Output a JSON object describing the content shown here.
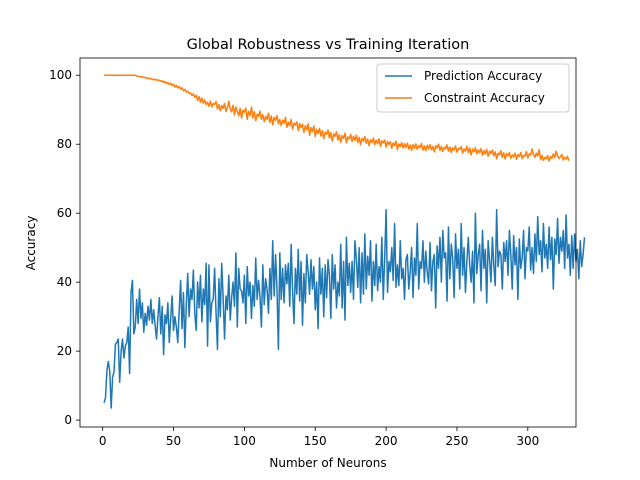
{
  "chart_data": {
    "type": "line",
    "title": "Global Robustness vs Training Iteration",
    "xlabel": "Number of Neurons",
    "ylabel": "Accuracy",
    "xlim": [
      -16,
      334
    ],
    "ylim": [
      -2,
      105
    ],
    "xticks": [
      0,
      50,
      100,
      150,
      200,
      250,
      300
    ],
    "yticks": [
      0,
      20,
      40,
      60,
      80,
      100
    ],
    "grid": false,
    "legend_position": "top-right",
    "series": [
      {
        "name": "Prediction Accuracy",
        "color": "#1f77b4",
        "y": [
          5.0,
          6.5,
          14.5,
          17.0,
          14.0,
          3.5,
          12.5,
          14.0,
          22.0,
          22.5,
          23.5,
          11.0,
          20.0,
          23.5,
          18.0,
          21.5,
          22.5,
          27.0,
          13.5,
          37.0,
          40.5,
          25.0,
          27.0,
          35.0,
          28.0,
          38.0,
          29.5,
          34.0,
          25.5,
          31.0,
          27.5,
          33.0,
          29.0,
          35.0,
          28.0,
          32.0,
          27.5,
          23.5,
          30.0,
          35.5,
          25.0,
          33.0,
          19.0,
          30.5,
          28.0,
          34.0,
          22.5,
          29.5,
          36.0,
          26.0,
          30.0,
          27.0,
          22.5,
          32.0,
          40.5,
          26.5,
          37.0,
          21.0,
          33.5,
          42.5,
          30.0,
          38.0,
          35.0,
          43.5,
          31.0,
          26.0,
          40.0,
          32.5,
          42.0,
          28.5,
          38.0,
          33.5,
          45.5,
          21.5,
          45.0,
          28.5,
          34.0,
          35.0,
          44.0,
          31.0,
          20.5,
          41.0,
          30.0,
          45.5,
          35.5,
          23.5,
          36.0,
          32.0,
          42.0,
          29.0,
          35.5,
          40.0,
          33.0,
          48.5,
          27.0,
          44.0,
          38.0,
          37.5,
          34.0,
          42.0,
          28.0,
          44.5,
          36.0,
          40.0,
          29.5,
          39.0,
          33.0,
          47.0,
          35.0,
          40.5,
          36.0,
          27.0,
          45.0,
          33.5,
          41.0,
          38.0,
          31.0,
          44.0,
          35.0,
          52.0,
          36.0,
          48.0,
          38.0,
          20.5,
          48.5,
          35.0,
          44.0,
          34.0,
          45.0,
          39.5,
          45.5,
          33.0,
          51.0,
          37.5,
          28.0,
          44.0,
          36.5,
          49.5,
          34.5,
          46.0,
          27.5,
          42.5,
          34.0,
          48.0,
          43.0,
          36.5,
          46.5,
          38.0,
          44.5,
          32.0,
          40.0,
          26.5,
          47.0,
          36.5,
          44.0,
          30.0,
          45.0,
          35.5,
          46.5,
          42.0,
          29.5,
          48.0,
          38.0,
          45.0,
          32.5,
          40.0,
          36.0,
          51.0,
          32.5,
          46.0,
          29.0,
          53.0,
          39.0,
          45.5,
          37.0,
          46.0,
          35.0,
          52.0,
          47.0,
          38.5,
          50.0,
          34.0,
          48.5,
          36.5,
          54.0,
          38.0,
          47.5,
          42.0,
          52.0,
          34.5,
          46.0,
          39.0,
          51.0,
          37.5,
          44.5,
          40.0,
          53.0,
          35.0,
          47.0,
          61.0,
          37.0,
          46.0,
          43.0,
          50.0,
          40.5,
          57.0,
          38.5,
          45.0,
          39.0,
          52.0,
          41.0,
          44.0,
          35.0,
          46.5,
          48.0,
          38.0,
          43.0,
          50.0,
          35.5,
          47.0,
          42.0,
          57.0,
          38.0,
          46.0,
          44.0,
          52.0,
          40.0,
          49.0,
          43.0,
          39.5,
          51.5,
          37.5,
          46.0,
          48.0,
          32.5,
          50.5,
          44.0,
          53.0,
          40.0,
          55.0,
          47.0,
          48.5,
          34.5,
          56.0,
          41.0,
          51.0,
          47.0,
          35.5,
          54.0,
          44.0,
          49.5,
          38.0,
          57.0,
          42.0,
          50.0,
          37.0,
          46.0,
          53.0,
          45.0,
          40.0,
          49.0,
          34.0,
          60.0,
          42.5,
          48.0,
          51.0,
          37.5,
          55.0,
          44.0,
          49.5,
          34.0,
          52.0,
          46.5,
          40.0,
          53.0,
          45.0,
          39.0,
          61.0,
          44.5,
          49.0,
          48.0,
          38.0,
          51.5,
          46.0,
          52.0,
          42.0,
          55.0,
          48.0,
          38.0,
          53.5,
          45.0,
          50.0,
          35.0,
          52.5,
          44.0,
          47.0,
          55.0,
          41.0,
          50.0,
          49.0,
          56.0,
          43.5,
          50.0,
          42.5,
          54.0,
          46.0,
          59.0,
          48.0,
          52.0,
          43.0,
          57.0,
          47.0,
          51.0,
          44.0,
          56.0,
          46.5,
          53.0,
          38.0,
          52.5,
          48.0,
          58.5,
          45.5,
          53.0,
          49.0,
          55.0,
          44.0,
          59.5,
          47.0,
          51.0,
          42.0,
          53.5,
          44.0,
          54.0,
          46.0,
          49.5,
          41.0,
          52.0,
          44.5,
          48.0,
          53.0
        ]
      },
      {
        "name": "Constraint Accuracy",
        "color": "#ff7f0e",
        "y": [
          100,
          100,
          100,
          100,
          100,
          100,
          100,
          100,
          100,
          100,
          100,
          100,
          100,
          100,
          100,
          100,
          100,
          100,
          100,
          100,
          100,
          100,
          100,
          99.8,
          99.6,
          99.7,
          99.5,
          99.6,
          99.3,
          99.4,
          99.1,
          99.2,
          98.9,
          99.1,
          98.7,
          98.9,
          98.6,
          98.8,
          98.4,
          98.6,
          98.2,
          98.4,
          97.9,
          98.2,
          97.6,
          97.9,
          97.3,
          97.7,
          97.0,
          97.4,
          96.6,
          97.1,
          96.3,
          96.8,
          95.9,
          96.4,
          95.5,
          95.9,
          95.1,
          95.4,
          94.7,
          94.9,
          94.1,
          94.6,
          93.6,
          94.2,
          92.7,
          93.8,
          92.2,
          93.4,
          91.9,
          92.8,
          91.5,
          92.2,
          91.0,
          92.5,
          90.8,
          91.8,
          91.5,
          92.4,
          90.2,
          91.5,
          89.7,
          91.2,
          90.4,
          91.8,
          89.5,
          90.6,
          92.5,
          90.2,
          89.4,
          91.3,
          88.5,
          90.8,
          89.6,
          88.2,
          90.4,
          87.6,
          89.9,
          89.3,
          90.5,
          87.2,
          89.5,
          88.3,
          90.8,
          87.6,
          89.4,
          86.8,
          88.7,
          88.1,
          89.6,
          87.2,
          88.6,
          86.5,
          88.1,
          87.2,
          89.0,
          86.3,
          88.2,
          85.6,
          87.8,
          86.9,
          88.3,
          85.9,
          87.2,
          85.4,
          87.0,
          86.1,
          87.8,
          84.9,
          86.4,
          85.3,
          87.2,
          84.4,
          86.1,
          85.6,
          86.5,
          83.9,
          86.0,
          84.8,
          85.8,
          83.4,
          85.4,
          84.1,
          85.9,
          82.6,
          84.8,
          83.7,
          85.3,
          82.2,
          84.3,
          83.1,
          84.6,
          82.4,
          83.9,
          81.6,
          83.5,
          82.9,
          84.1,
          81.8,
          83.4,
          80.9,
          83.0,
          82.3,
          83.6,
          81.2,
          82.8,
          80.6,
          82.5,
          81.7,
          83.2,
          80.4,
          82.1,
          81.5,
          82.9,
          80.8,
          82.3,
          81.1,
          82.6,
          80.5,
          82.0,
          79.8,
          81.7,
          80.9,
          82.2,
          80.3,
          81.5,
          79.6,
          81.3,
          80.5,
          81.8,
          79.9,
          81.2,
          80.1,
          81.6,
          79.4,
          81.0,
          80.4,
          81.2,
          79.2,
          80.8,
          79.9,
          80.7,
          78.8,
          80.4,
          79.6,
          80.9,
          78.4,
          80.1,
          79.3,
          80.5,
          78.9,
          80.2,
          79.0,
          80.3,
          78.6,
          79.8,
          78.2,
          79.9,
          78.8,
          80.1,
          78.5,
          79.6,
          79.0,
          80.2,
          78.3,
          79.5,
          78.1,
          79.7,
          78.6,
          79.9,
          78.4,
          79.3,
          77.8,
          79.6,
          78.9,
          80.0,
          78.2,
          79.4,
          77.9,
          79.1,
          78.6,
          79.8,
          78.0,
          79.2,
          77.6,
          79.0,
          78.3,
          79.5,
          77.7,
          78.8,
          78.5,
          79.3,
          77.4,
          78.6,
          78.0,
          79.4,
          77.6,
          78.9,
          76.9,
          78.6,
          77.8,
          79.0,
          77.2,
          78.4,
          77.5,
          78.7,
          76.8,
          78.2,
          77.1,
          78.5,
          76.5,
          78.0,
          77.3,
          78.3,
          76.6,
          77.8,
          75.8,
          77.4,
          76.9,
          78.1,
          76.2,
          77.5,
          75.7,
          77.3,
          76.6,
          77.6,
          75.9,
          76.9,
          76.3,
          77.4,
          75.6,
          77.0,
          76.4,
          77.6,
          75.8,
          76.8,
          76.5,
          77.9,
          76.0,
          77.2,
          76.8,
          78.6,
          77.0,
          76.2,
          77.4,
          76.6,
          78.4,
          75.5,
          76.8,
          75.3,
          76.2,
          75.8,
          76.7,
          75.1,
          76.4,
          75.9,
          77.2,
          76.1,
          78.0,
          76.6,
          75.9,
          76.3,
          77.0,
          75.4,
          76.2,
          75.7,
          76.5,
          75.2
        ]
      }
    ]
  }
}
